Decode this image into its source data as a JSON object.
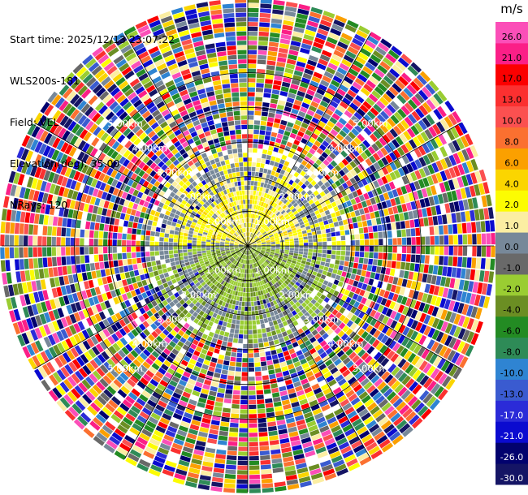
{
  "header": {
    "start_time": "Start time: 2025/12/13 23:07:22",
    "instrument": "WLS200s-181",
    "field": "Field: VEL",
    "elevation": "Elevation(deg): 35.00",
    "nrays": "NRays: 120"
  },
  "chart_data": {
    "type": "heatmap",
    "projection": "polar-ppi",
    "field": "VEL",
    "units": "m/s",
    "elevation_deg": 35.0,
    "n_rays": 120,
    "range_rings_km": [
      1.0,
      2.0,
      3.0,
      4.0,
      5.0
    ],
    "range_ring_labels": [
      "1.00km",
      "2.00km",
      "3.00km",
      "4.00km",
      "5.00km"
    ],
    "max_range_km": 7.1,
    "spoke_angles_deg": [
      0,
      30,
      60,
      90,
      120,
      150,
      180,
      210,
      240,
      270,
      300,
      330
    ],
    "colorbar": {
      "label": "m/s",
      "ticks": [
        "-30.0",
        "-26.0",
        "-21.0",
        "-17.0",
        "-13.0",
        "-10.0",
        "-8.0",
        "-6.0",
        "-4.0",
        "-2.0",
        "-1.0",
        "0.0",
        "1.0",
        "2.0",
        "4.0",
        "6.0",
        "8.0",
        "10.0",
        "13.0",
        "17.0",
        "21.0",
        "26.0"
      ],
      "colors": [
        "#151565",
        "#02026e",
        "#0b0bd0",
        "#2b2bd8",
        "#3a5bd0",
        "#2f84d2",
        "#2e8b57",
        "#238b23",
        "#6b8e23",
        "#9acd32",
        "#696969",
        "#778899",
        "#fbeea2",
        "#fcfc02",
        "#fbd500",
        "#fba000",
        "#fb7030",
        "#fb5050",
        "#fb3030",
        "#fb0000",
        "#fb1f87",
        "#fb4fb8"
      ]
    },
    "pattern_notes": "Near field (<~2.8km) coherent: positive (yellow) velocities to the north, negative (yellow-green) to the south, grey/noise mixed in; beyond that random noise across full palette."
  }
}
